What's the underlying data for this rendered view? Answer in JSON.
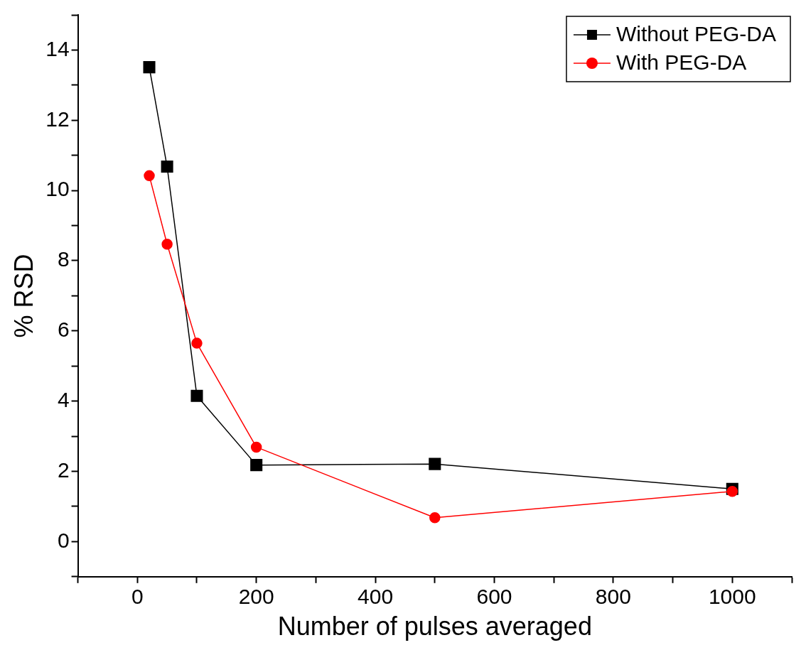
{
  "chart_data": {
    "type": "line",
    "xlabel": "Number of pulses averaged",
    "ylabel": "% RSD",
    "x": [
      20,
      50,
      100,
      200,
      500,
      1000
    ],
    "series": [
      {
        "name": "Without PEG-DA",
        "color": "#000000",
        "marker": "square",
        "values": [
          13.51,
          10.68,
          4.15,
          2.18,
          2.21,
          1.5
        ]
      },
      {
        "name": "With PEG-DA",
        "color": "#ff0000",
        "marker": "circle",
        "values": [
          10.42,
          8.47,
          5.65,
          2.69,
          0.68,
          1.43
        ]
      }
    ],
    "xlim": [
      -100,
      1100
    ],
    "xticks": [
      {
        "value": -100,
        "label": null
      },
      0,
      {
        "value": 100,
        "label": null
      },
      200,
      {
        "value": 300,
        "label": null
      },
      400,
      {
        "value": 500,
        "label": null
      },
      600,
      {
        "value": 700,
        "label": null
      },
      800,
      {
        "value": 900,
        "label": null
      },
      1000,
      {
        "value": 1100,
        "label": null
      }
    ],
    "ylim": [
      -1,
      15
    ],
    "yticks": [
      {
        "value": -1,
        "label": null
      },
      0,
      {
        "value": 1,
        "label": null
      },
      2,
      {
        "value": 3,
        "label": null
      },
      4,
      {
        "value": 5,
        "label": null
      },
      6,
      {
        "value": 7,
        "label": null
      },
      8,
      {
        "value": 9,
        "label": null
      },
      10,
      {
        "value": 11,
        "label": null
      },
      12,
      {
        "value": 13,
        "label": null
      },
      14,
      {
        "value": 15,
        "label": null
      }
    ],
    "grid": false,
    "legend": "top right",
    "line_style": "solid"
  }
}
